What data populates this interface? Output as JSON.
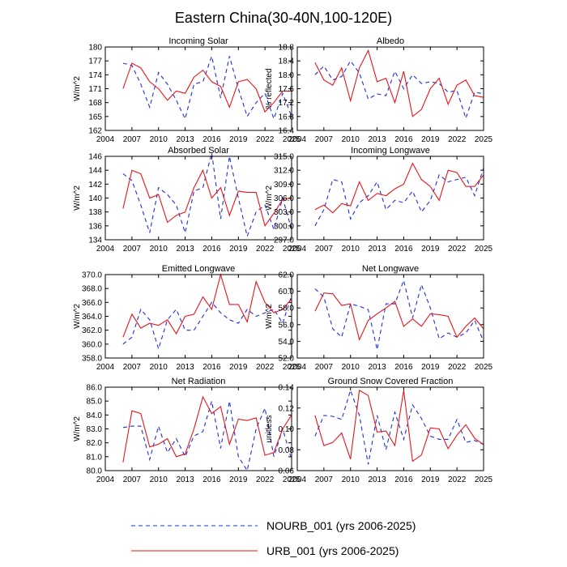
{
  "title": "Eastern China(30-40N,100-120E)",
  "legend": [
    {
      "label": "NOURB_001 (yrs 2006-2025)",
      "color": "#1f2fd8",
      "style": "dashed"
    },
    {
      "label": "URB_001 (yrs 2006-2025)",
      "color": "#e8141c",
      "style": "solid"
    }
  ],
  "chart_data": [
    {
      "type": "line",
      "title": "Incoming Solar",
      "xlabel": "",
      "ylabel": "W/m^2",
      "xlim": [
        2004,
        2025
      ],
      "ylim": [
        162,
        180
      ],
      "xticks": [
        2004,
        2007,
        2010,
        2013,
        2016,
        2019,
        2022,
        2025
      ],
      "yticks": [
        162,
        165,
        168,
        171,
        174,
        177,
        180
      ],
      "ytick_labels": [
        "162",
        "165",
        "168",
        "171",
        "174",
        "177",
        "180"
      ],
      "x": [
        2006,
        2007,
        2008,
        2009,
        2010,
        2011,
        2012,
        2013,
        2014,
        2015,
        2016,
        2017,
        2018,
        2019,
        2020,
        2021,
        2022,
        2023,
        2024,
        2025
      ],
      "series": [
        {
          "name": "NOURB_001",
          "values": [
            176.5,
            176.0,
            172.0,
            167.0,
            174.5,
            172.0,
            168.5,
            164.5,
            172.0,
            172.5,
            178.0,
            169.0,
            178.0,
            171.0,
            165.0,
            168.0,
            170.0,
            164.5,
            170.0,
            165.0
          ]
        },
        {
          "name": "URB_001",
          "values": [
            171.0,
            176.5,
            175.5,
            172.5,
            171.0,
            168.5,
            170.5,
            170.0,
            173.5,
            175.0,
            172.5,
            171.5,
            167.0,
            172.5,
            173.0,
            171.0,
            166.0,
            168.0,
            170.5,
            170.5
          ]
        }
      ]
    },
    {
      "type": "line",
      "title": "Albedo",
      "xlabel": "",
      "ylabel": "% reflected",
      "xlim": [
        2004,
        2025
      ],
      "ylim": [
        16.4,
        18.8
      ],
      "xticks": [
        2004,
        2007,
        2010,
        2013,
        2016,
        2019,
        2022,
        2025
      ],
      "yticks": [
        16.4,
        16.8,
        17.2,
        17.6,
        18.0,
        18.4,
        18.8
      ],
      "ytick_labels": [
        "16.4",
        "16.8",
        "17.2",
        "17.6",
        "18.0",
        "18.4",
        "18.8"
      ],
      "x": [
        2006,
        2007,
        2008,
        2009,
        2010,
        2011,
        2012,
        2013,
        2014,
        2015,
        2016,
        2017,
        2018,
        2019,
        2020,
        2021,
        2022,
        2023,
        2024,
        2025
      ],
      "series": [
        {
          "name": "NOURB_001",
          "values": [
            18.0,
            18.25,
            17.85,
            17.95,
            18.4,
            18.05,
            17.3,
            17.45,
            17.4,
            18.1,
            17.6,
            18.0,
            17.75,
            17.8,
            17.75,
            17.5,
            17.55,
            16.75,
            17.5,
            17.45
          ]
        },
        {
          "name": "URB_001",
          "values": [
            18.35,
            17.85,
            17.7,
            18.2,
            17.25,
            18.2,
            18.7,
            17.8,
            17.9,
            17.2,
            18.1,
            16.8,
            17.0,
            17.6,
            17.9,
            17.15,
            17.7,
            17.85,
            17.4,
            17.35
          ]
        }
      ]
    },
    {
      "type": "line",
      "title": "Absorbed Solar",
      "xlabel": "",
      "ylabel": "W/m^2",
      "xlim": [
        2004,
        2025
      ],
      "ylim": [
        134,
        146
      ],
      "xticks": [
        2004,
        2007,
        2010,
        2013,
        2016,
        2019,
        2022,
        2025
      ],
      "yticks": [
        134,
        136,
        138,
        140,
        142,
        144,
        146
      ],
      "ytick_labels": [
        "134",
        "136",
        "138",
        "140",
        "142",
        "144",
        "146"
      ],
      "x": [
        2006,
        2007,
        2008,
        2009,
        2010,
        2011,
        2012,
        2013,
        2014,
        2015,
        2016,
        2017,
        2018,
        2019,
        2020,
        2021,
        2022,
        2023,
        2024,
        2025
      ],
      "series": [
        {
          "name": "NOURB_001",
          "values": [
            143.5,
            142.5,
            139.0,
            135.0,
            141.5,
            140.5,
            139.0,
            135.0,
            141.0,
            141.5,
            146.5,
            137.0,
            146.0,
            140.0,
            134.5,
            138.0,
            139.0,
            135.5,
            140.0,
            135.5
          ]
        },
        {
          "name": "URB_001",
          "values": [
            138.5,
            144.0,
            143.5,
            140.0,
            140.5,
            136.5,
            137.5,
            138.0,
            141.5,
            144.0,
            140.0,
            141.5,
            137.5,
            141.0,
            140.8,
            140.8,
            136.0,
            137.8,
            139.8,
            140.0
          ]
        }
      ]
    },
    {
      "type": "line",
      "title": "Incoming Longwave",
      "xlabel": "",
      "ylabel": "W/m^2",
      "xlim": [
        2004,
        2025
      ],
      "ylim": [
        297.0,
        315.0
      ],
      "xticks": [
        2004,
        2007,
        2010,
        2013,
        2016,
        2019,
        2022,
        2025
      ],
      "yticks": [
        297.0,
        300.0,
        303.0,
        306.0,
        309.0,
        312.0,
        315.0
      ],
      "ytick_labels": [
        "297.0",
        "300.0",
        "303.0",
        "306.0",
        "309.0",
        "312.0",
        "315.0"
      ],
      "x": [
        2006,
        2007,
        2008,
        2009,
        2010,
        2011,
        2012,
        2013,
        2014,
        2015,
        2016,
        2017,
        2018,
        2019,
        2020,
        2021,
        2022,
        2023,
        2024,
        2025
      ],
      "series": [
        {
          "name": "NOURB_001",
          "values": [
            300.0,
            303.5,
            310.0,
            309.5,
            301.5,
            305.0,
            306.5,
            309.5,
            303.5,
            305.5,
            305.0,
            307.5,
            303.0,
            305.5,
            311.0,
            309.5,
            310.0,
            310.5,
            306.5,
            312.5
          ]
        },
        {
          "name": "URB_001",
          "values": [
            303.5,
            304.5,
            302.8,
            304.8,
            304.3,
            309.5,
            305.5,
            307.0,
            306.5,
            308.0,
            309.0,
            313.5,
            310.0,
            308.5,
            305.5,
            312.0,
            311.5,
            308.5,
            308.5,
            311.0
          ]
        }
      ]
    },
    {
      "type": "line",
      "title": "Emitted Longwave",
      "xlabel": "",
      "ylabel": "W/m^2",
      "xlim": [
        2004,
        2025
      ],
      "ylim": [
        358.0,
        370.0
      ],
      "xticks": [
        2004,
        2007,
        2010,
        2013,
        2016,
        2019,
        2022,
        2025
      ],
      "yticks": [
        358.0,
        360.0,
        362.0,
        364.0,
        366.0,
        368.0,
        370.0
      ],
      "ytick_labels": [
        "358.0",
        "360.0",
        "362.0",
        "364.0",
        "366.0",
        "368.0",
        "370.0"
      ],
      "x": [
        2006,
        2007,
        2008,
        2009,
        2010,
        2011,
        2012,
        2013,
        2014,
        2015,
        2016,
        2017,
        2018,
        2019,
        2020,
        2021,
        2022,
        2023,
        2024,
        2025
      ],
      "series": [
        {
          "name": "NOURB_001",
          "values": [
            360.0,
            361.0,
            365.0,
            363.5,
            359.3,
            363.5,
            365.0,
            362.0,
            362.0,
            364.0,
            366.0,
            364.5,
            363.5,
            363.0,
            365.0,
            364.0,
            364.5,
            365.0,
            363.0,
            367.0
          ]
        },
        {
          "name": "URB_001",
          "values": [
            361.0,
            364.3,
            362.3,
            363.0,
            362.7,
            363.5,
            361.5,
            364.0,
            364.3,
            366.8,
            365.0,
            370.0,
            365.7,
            365.7,
            363.2,
            369.0,
            366.0,
            364.5,
            365.0,
            366.5
          ]
        }
      ]
    },
    {
      "type": "line",
      "title": "Net Longwave",
      "xlabel": "",
      "ylabel": "W/m^2",
      "xlim": [
        2004,
        2025
      ],
      "ylim": [
        52.0,
        62.0
      ],
      "xticks": [
        2004,
        2007,
        2010,
        2013,
        2016,
        2019,
        2022,
        2025
      ],
      "yticks": [
        52.0,
        54.0,
        56.0,
        58.0,
        60.0,
        62.0
      ],
      "ytick_labels": [
        "52.0",
        "54.0",
        "56.0",
        "58.0",
        "60.0",
        "62.0"
      ],
      "x": [
        2006,
        2007,
        2008,
        2009,
        2010,
        2011,
        2012,
        2013,
        2014,
        2015,
        2016,
        2017,
        2018,
        2019,
        2020,
        2021,
        2022,
        2023,
        2024,
        2025
      ],
      "series": [
        {
          "name": "NOURB_001",
          "values": [
            60.3,
            59.3,
            55.5,
            54.5,
            58.5,
            58.2,
            57.8,
            53.0,
            58.5,
            58.5,
            61.3,
            56.8,
            60.8,
            58.0,
            54.3,
            55.0,
            54.5,
            55.0,
            56.5,
            54.0
          ]
        },
        {
          "name": "URB_001",
          "values": [
            57.6,
            59.8,
            59.7,
            58.3,
            58.5,
            54.2,
            56.5,
            57.3,
            58.0,
            58.8,
            55.8,
            56.7,
            55.8,
            57.3,
            57.2,
            57.0,
            54.5,
            55.8,
            56.8,
            55.5
          ]
        }
      ]
    },
    {
      "type": "line",
      "title": "Net Radiation",
      "xlabel": "",
      "ylabel": "W/m^2",
      "xlim": [
        2004,
        2025
      ],
      "ylim": [
        80.0,
        86.0
      ],
      "xticks": [
        2004,
        2007,
        2010,
        2013,
        2016,
        2019,
        2022,
        2025
      ],
      "yticks": [
        80.0,
        81.0,
        82.0,
        83.0,
        84.0,
        85.0,
        86.0
      ],
      "ytick_labels": [
        "80.0",
        "81.0",
        "82.0",
        "83.0",
        "84.0",
        "85.0",
        "86.0"
      ],
      "x": [
        2006,
        2007,
        2008,
        2009,
        2010,
        2011,
        2012,
        2013,
        2014,
        2015,
        2016,
        2017,
        2018,
        2019,
        2020,
        2021,
        2022,
        2023,
        2024,
        2025
      ],
      "series": [
        {
          "name": "NOURB_001",
          "values": [
            83.1,
            83.2,
            83.2,
            80.8,
            83.2,
            81.3,
            82.3,
            81.0,
            82.5,
            82.8,
            85.0,
            81.6,
            85.0,
            81.0,
            80.0,
            83.0,
            84.5,
            81.0,
            83.0,
            80.8
          ]
        },
        {
          "name": "URB_001",
          "values": [
            80.6,
            84.3,
            84.1,
            81.7,
            81.9,
            82.3,
            81.0,
            81.2,
            83.0,
            85.3,
            84.1,
            84.6,
            81.9,
            83.7,
            83.6,
            83.8,
            81.1,
            81.3,
            83.0,
            84.0
          ]
        }
      ]
    },
    {
      "type": "line",
      "title": "Ground Snow Covered Fraction",
      "xlabel": "",
      "ylabel": "unitless",
      "xlim": [
        2004,
        2025
      ],
      "ylim": [
        0.06,
        0.14
      ],
      "xticks": [
        2004,
        2007,
        2010,
        2013,
        2016,
        2019,
        2022,
        2025
      ],
      "yticks": [
        0.06,
        0.08,
        0.1,
        0.12,
        0.14
      ],
      "ytick_labels": [
        "0.06",
        "0.08",
        "0.10",
        "0.12",
        "0.14"
      ],
      "x": [
        2006,
        2007,
        2008,
        2009,
        2010,
        2011,
        2012,
        2013,
        2014,
        2015,
        2016,
        2017,
        2018,
        2019,
        2020,
        2021,
        2022,
        2023,
        2024,
        2025
      ],
      "series": [
        {
          "name": "NOURB_001",
          "values": [
            0.093,
            0.113,
            0.112,
            0.109,
            0.137,
            0.113,
            0.066,
            0.113,
            0.08,
            0.116,
            0.09,
            0.123,
            0.11,
            0.093,
            0.09,
            0.09,
            0.109,
            0.087,
            0.089,
            0.085
          ]
        },
        {
          "name": "URB_001",
          "values": [
            0.113,
            0.084,
            0.087,
            0.096,
            0.071,
            0.137,
            0.132,
            0.097,
            0.098,
            0.084,
            0.137,
            0.069,
            0.075,
            0.101,
            0.1,
            0.081,
            0.094,
            0.104,
            0.091,
            0.085
          ]
        }
      ]
    }
  ]
}
